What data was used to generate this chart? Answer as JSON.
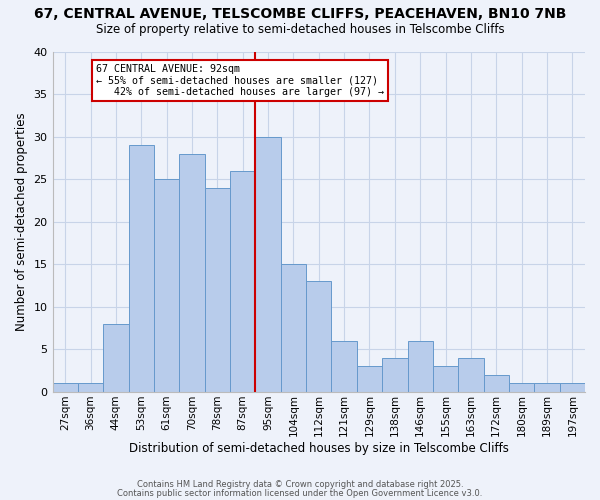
{
  "title1": "67, CENTRAL AVENUE, TELSCOMBE CLIFFS, PEACEHAVEN, BN10 7NB",
  "title2": "Size of property relative to semi-detached houses in Telscombe Cliffs",
  "xlabel": "Distribution of semi-detached houses by size in Telscombe Cliffs",
  "ylabel": "Number of semi-detached properties",
  "bin_labels": [
    "27sqm",
    "36sqm",
    "44sqm",
    "53sqm",
    "61sqm",
    "70sqm",
    "78sqm",
    "87sqm",
    "95sqm",
    "104sqm",
    "112sqm",
    "121sqm",
    "129sqm",
    "138sqm",
    "146sqm",
    "155sqm",
    "163sqm",
    "172sqm",
    "180sqm",
    "189sqm",
    "197sqm"
  ],
  "bar_values": [
    1,
    1,
    8,
    29,
    25,
    28,
    24,
    26,
    30,
    15,
    13,
    6,
    3,
    4,
    6,
    3,
    4,
    2,
    1,
    1,
    1
  ],
  "bar_color": "#b8cceb",
  "bar_edge_color": "#6699cc",
  "vline_color": "#cc0000",
  "annotation_box_color": "#ffffff",
  "annotation_box_edge": "#cc0000",
  "vline_x_index": 8,
  "ylim": [
    0,
    40
  ],
  "yticks": [
    0,
    5,
    10,
    15,
    20,
    25,
    30,
    35,
    40
  ],
  "grid_color": "#c8d4e8",
  "background_color": "#eef2fa",
  "footer1": "Contains HM Land Registry data © Crown copyright and database right 2025.",
  "footer2": "Contains public sector information licensed under the Open Government Licence v3.0.",
  "ann_line1": "67 CENTRAL AVENUE: 92sqm",
  "ann_line2": "← 55% of semi-detached houses are smaller (127)",
  "ann_line3": "   42% of semi-detached houses are larger (97) →"
}
